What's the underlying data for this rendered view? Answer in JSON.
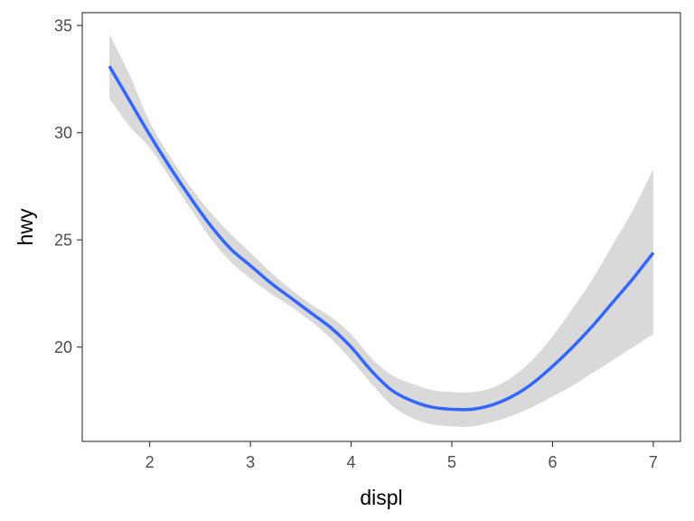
{
  "chart_data": {
    "type": "line",
    "xlabel": "displ",
    "ylabel": "hwy",
    "xlim": [
      1.33,
      7.27
    ],
    "ylim": [
      15.6,
      35.6
    ],
    "x_ticks": [
      2,
      3,
      4,
      5,
      6,
      7
    ],
    "y_ticks": [
      20,
      25,
      30,
      35
    ],
    "grid": false,
    "series": [
      {
        "type": "smooth",
        "x": [
          1.6,
          1.8,
          2.0,
          2.2,
          2.4,
          2.6,
          2.8,
          3.0,
          3.2,
          3.4,
          3.6,
          3.8,
          4.0,
          4.2,
          4.4,
          4.6,
          4.8,
          5.0,
          5.2,
          5.4,
          5.6,
          5.8,
          6.0,
          6.2,
          6.4,
          6.6,
          6.8,
          7.0
        ],
        "y": [
          33.1,
          31.5,
          29.9,
          28.4,
          27.0,
          25.7,
          24.6,
          23.8,
          23.0,
          22.3,
          21.6,
          20.9,
          20.0,
          18.9,
          18.0,
          17.5,
          17.2,
          17.1,
          17.1,
          17.3,
          17.7,
          18.3,
          19.1,
          20.0,
          21.0,
          22.1,
          23.2,
          24.4
        ],
        "lower": [
          31.6,
          30.3,
          29.3,
          27.9,
          26.5,
          25.1,
          24.0,
          23.2,
          22.5,
          21.9,
          21.2,
          20.4,
          19.4,
          18.3,
          17.3,
          16.7,
          16.4,
          16.3,
          16.3,
          16.5,
          16.8,
          17.2,
          17.7,
          18.2,
          18.8,
          19.4,
          20.0,
          20.6
        ],
        "upper": [
          34.6,
          32.7,
          30.5,
          28.9,
          27.5,
          26.3,
          25.3,
          24.4,
          23.5,
          22.7,
          22.0,
          21.4,
          20.6,
          19.5,
          18.7,
          18.3,
          18.0,
          17.9,
          17.9,
          18.1,
          18.6,
          19.4,
          20.5,
          21.8,
          23.2,
          24.8,
          26.4,
          28.3
        ],
        "color": "#3366FF",
        "band_color": "#D9D9D9"
      }
    ]
  }
}
